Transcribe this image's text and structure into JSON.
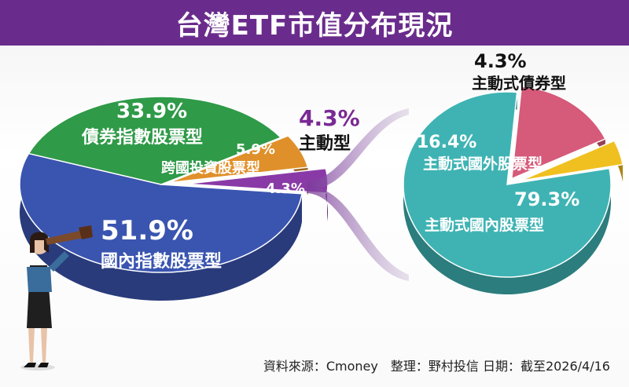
{
  "header": {
    "title": "台灣ETF市值分布現況"
  },
  "source_note": "資料來源：Cmoney　整理：野村投信 日期：截至2026/4/16",
  "chart_data": [
    {
      "type": "pie",
      "categories": [
        "國內指數股票型",
        "債券指數股票型",
        "跨國投資股票型",
        "主動型"
      ],
      "values": [
        51.9,
        33.9,
        5.9,
        4.3
      ],
      "labels": [
        "51.9%",
        "33.9%",
        "5.9%",
        "4.3%"
      ],
      "unit": "%",
      "colors": [
        "#3a55b0",
        "#2f9a48",
        "#e0902a",
        "#8a3aa6"
      ]
    },
    {
      "type": "pie",
      "categories": [
        "主動式國內股票型",
        "主動式國外股票型",
        "主動式債券型"
      ],
      "values": [
        79.3,
        16.4,
        4.3
      ],
      "labels": [
        "79.3%",
        "16.4%",
        "4.3%"
      ],
      "unit": "%",
      "colors": [
        "#3fb3b3",
        "#d65a7a",
        "#f0c020"
      ]
    }
  ],
  "callout": {
    "value": "4.3%",
    "label": "主動型"
  }
}
